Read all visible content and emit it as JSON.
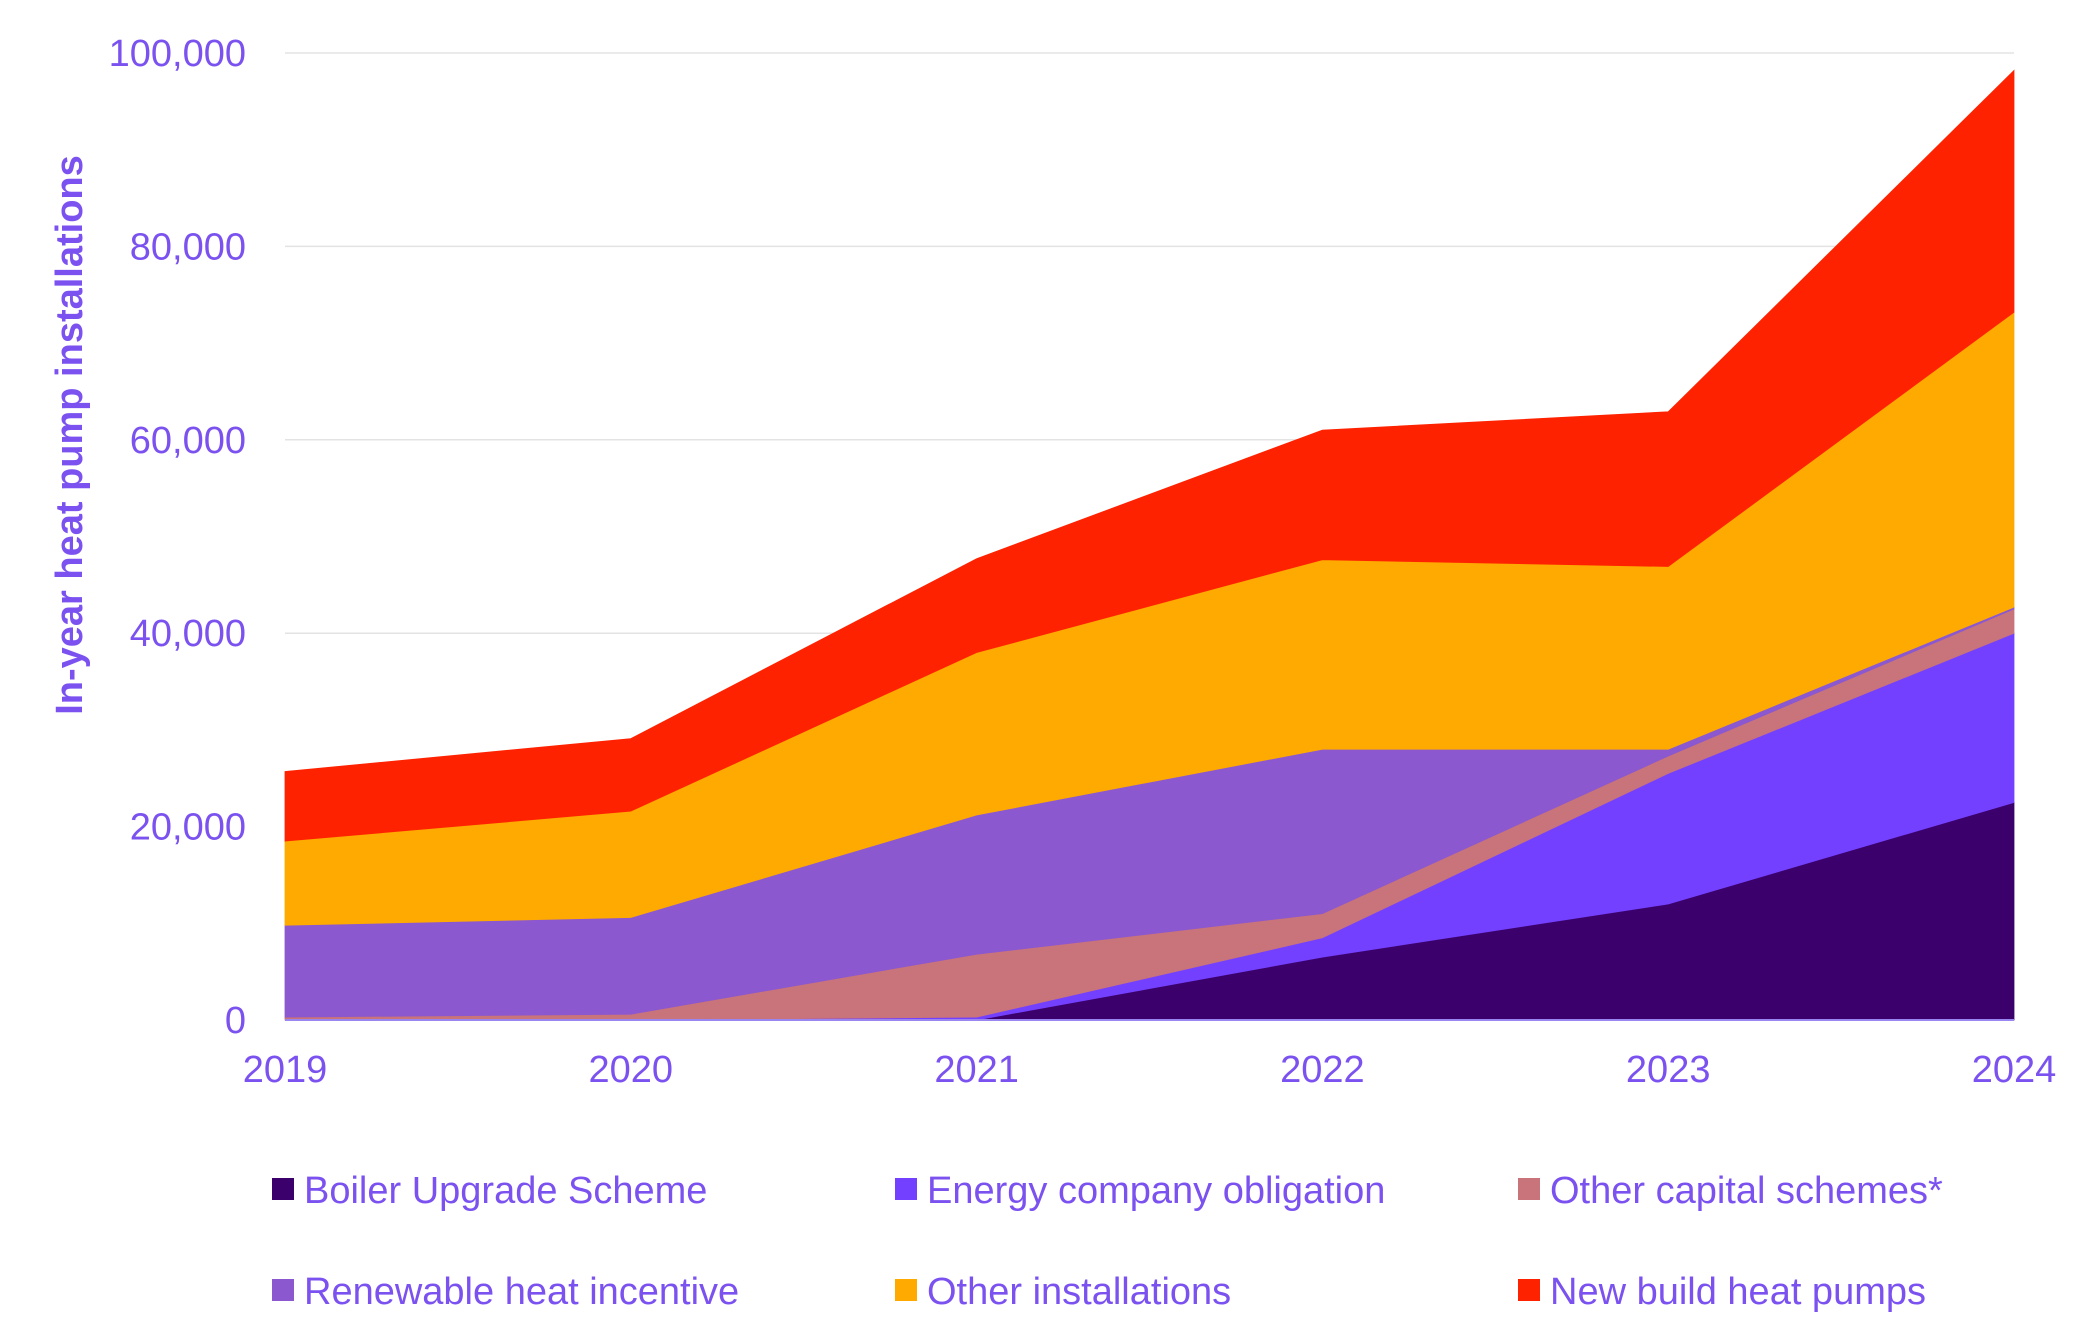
{
  "chart_data": {
    "type": "area",
    "stacked": true,
    "ylabel": "In-year heat pump installations",
    "xlabel": "",
    "title": "",
    "x": [
      "2019",
      "2020",
      "2021",
      "2022",
      "2023",
      "2024"
    ],
    "ylim": [
      0,
      100000
    ],
    "yticks": [
      0,
      20000,
      40000,
      60000,
      80000,
      100000
    ],
    "ytick_labels": [
      "0",
      "20,000",
      "40,000",
      "60,000",
      "80,000",
      "100,000"
    ],
    "grid": true,
    "legend_position": "bottom",
    "series": [
      {
        "name": "Boiler Upgrade Scheme",
        "color": "#3b006b",
        "values": [
          0,
          0,
          0,
          6500,
          12000,
          22500
        ]
      },
      {
        "name": "Energy company obligation",
        "color": "#7340ff",
        "values": [
          0,
          0,
          300,
          2000,
          13500,
          17500
        ]
      },
      {
        "name": "Other capital schemes*",
        "color": "#c9737a",
        "values": [
          300,
          600,
          6500,
          2500,
          1800,
          2500
        ]
      },
      {
        "name": "Renewable heat incentive",
        "color": "#8b58cf",
        "values": [
          9500,
          10000,
          14400,
          17000,
          700,
          200
        ]
      },
      {
        "name": "Other installations",
        "color": "#ffaa00",
        "values": [
          8700,
          11000,
          16800,
          19600,
          18900,
          30500
        ]
      },
      {
        "name": "New build heat pumps",
        "color": "#ff2200",
        "values": [
          7200,
          7500,
          9700,
          13400,
          16000,
          25000
        ]
      }
    ]
  }
}
